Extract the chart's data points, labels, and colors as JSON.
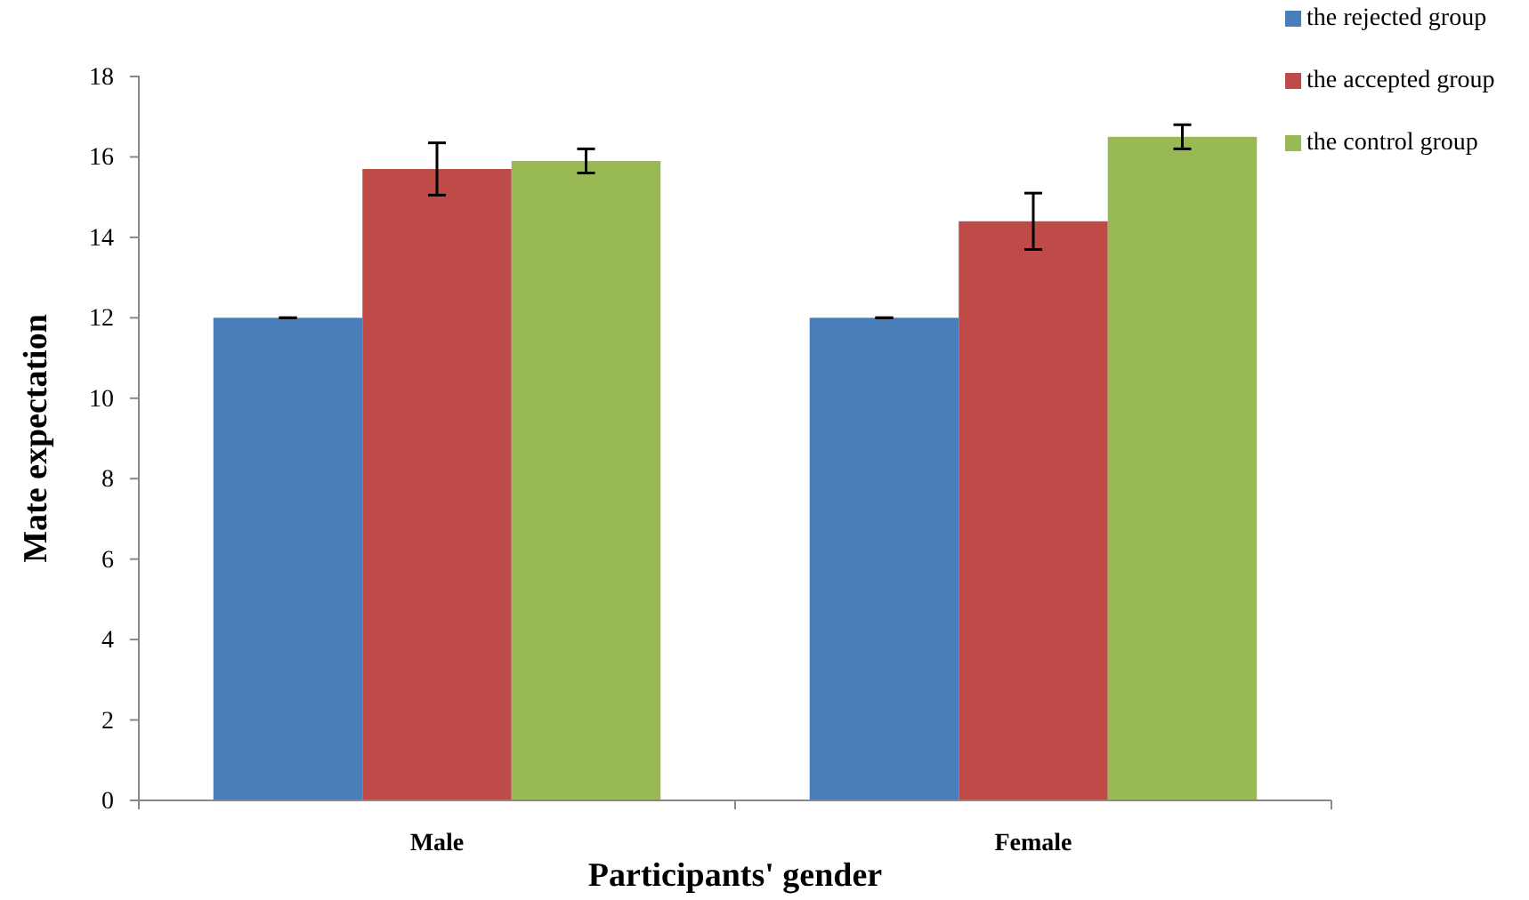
{
  "chart_data": {
    "type": "bar",
    "xlabel": "Participants' gender",
    "ylabel": "Mate expectation",
    "categories": [
      "Male",
      "Female"
    ],
    "series": [
      {
        "name": "the rejected group",
        "color": "#4a7ebb",
        "values": [
          12.0,
          12.0
        ],
        "errors": [
          0,
          0
        ]
      },
      {
        "name": "the accepted group",
        "color": "#be4b48",
        "values": [
          15.7,
          14.4
        ],
        "errors": [
          0.65,
          0.7
        ]
      },
      {
        "name": "the control group",
        "color": "#98b954",
        "values": [
          15.9,
          16.5
        ],
        "errors": [
          0.3,
          0.3
        ]
      }
    ],
    "ylim": [
      0,
      18
    ],
    "yticks": [
      0,
      2,
      4,
      6,
      8,
      10,
      12,
      14,
      16,
      18
    ],
    "legend": "top right"
  }
}
